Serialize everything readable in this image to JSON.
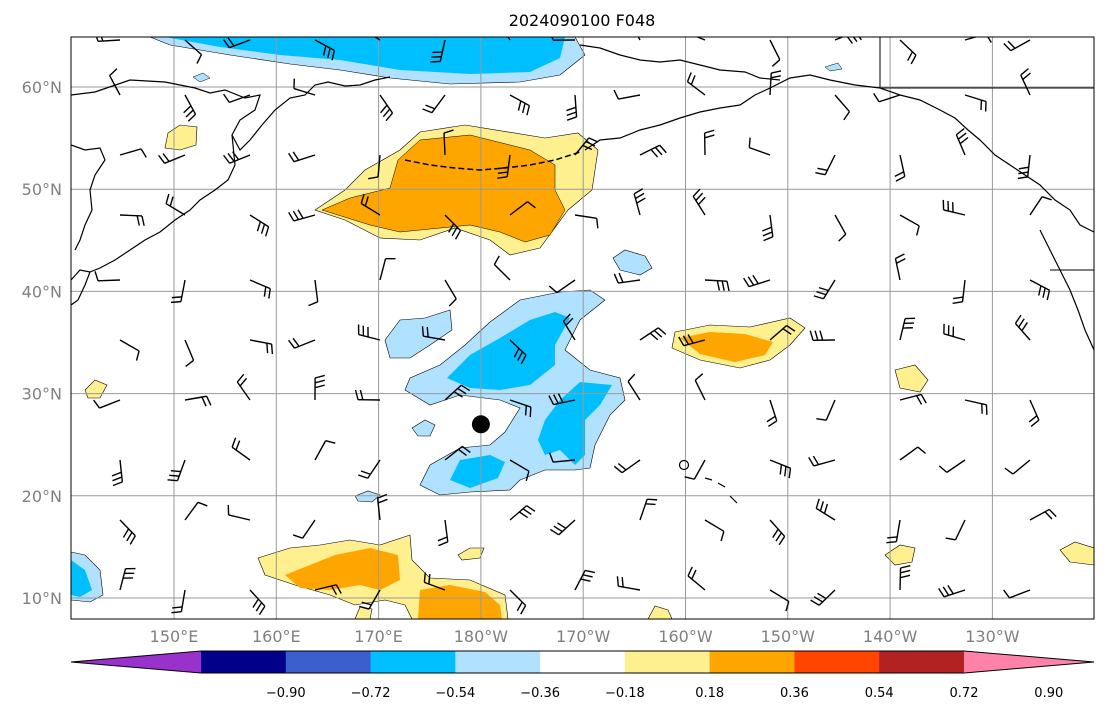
{
  "title": "2024090100 F048",
  "lat_labels": [
    {
      "lat": 60,
      "text": "60°N"
    },
    {
      "lat": 50,
      "text": "50°N"
    },
    {
      "lat": 40,
      "text": "40°N"
    },
    {
      "lat": 30,
      "text": "30°N"
    },
    {
      "lat": 20,
      "text": "20°N"
    },
    {
      "lat": 10,
      "text": "10°N"
    }
  ],
  "lon_labels": [
    {
      "lon": 150,
      "text": "150°E"
    },
    {
      "lon": 160,
      "text": "160°E"
    },
    {
      "lon": 170,
      "text": "170°E"
    },
    {
      "lon": 180,
      "text": "180°W"
    },
    {
      "lon": 190,
      "text": "170°W"
    },
    {
      "lon": 200,
      "text": "160°W"
    },
    {
      "lon": 210,
      "text": "150°W"
    },
    {
      "lon": 220,
      "text": "140°W"
    },
    {
      "lon": 230,
      "text": "130°W"
    }
  ],
  "colorbar": {
    "levels": [
      "−0.90",
      "−0.72",
      "−0.54",
      "−0.36",
      "−0.18",
      "0.18",
      "0.36",
      "0.54",
      "0.72",
      "0.90"
    ],
    "colors": [
      "#9932cc",
      "#00008b",
      "#3a5fcd",
      "#00bfff",
      "#b0e2ff",
      "#ffffff",
      "#fff08f",
      "#ffa500",
      "#ff4500",
      "#b22222",
      "#ff82ab"
    ]
  },
  "marker": {
    "lon": 180,
    "lat": 27
  }
}
